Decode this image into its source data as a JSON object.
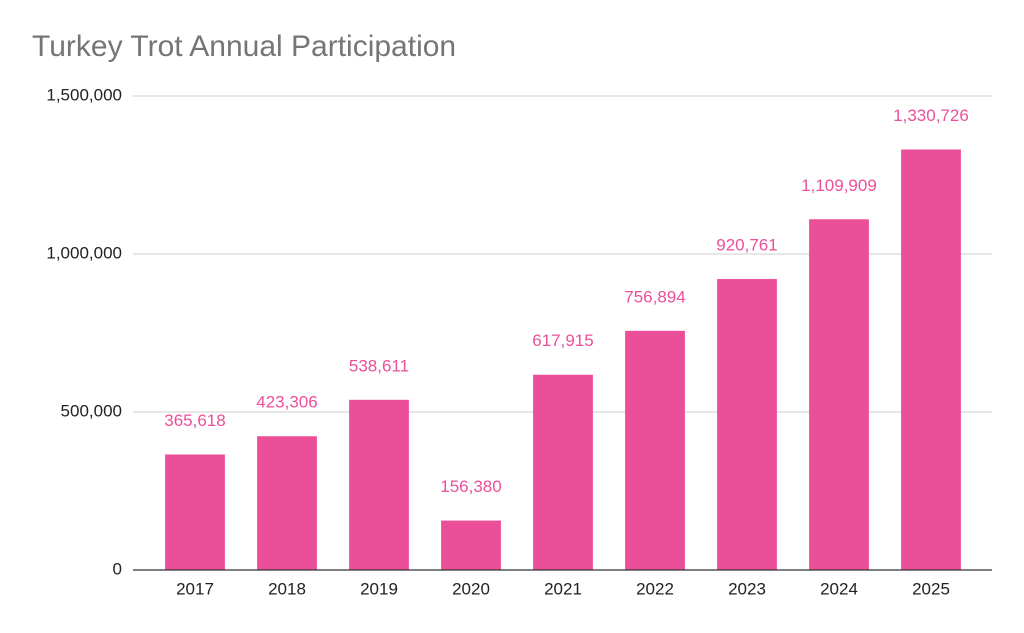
{
  "chart_data": {
    "type": "bar",
    "title": "Turkey Trot Annual Participation",
    "categories": [
      "2017",
      "2018",
      "2019",
      "2020",
      "2021",
      "2022",
      "2023",
      "2024",
      "2025"
    ],
    "values": [
      365618,
      423306,
      538611,
      156380,
      617915,
      756894,
      920761,
      1109909,
      1330726
    ],
    "value_labels": [
      "365,618",
      "423,306",
      "538,611",
      "156,380",
      "617,915",
      "756,894",
      "920,761",
      "1,109,909",
      "1,330,726"
    ],
    "color": "#ec4f99",
    "ylim": [
      0,
      1500000
    ],
    "yticks": [
      0,
      {
        "value": 500000,
        "label": "500,000"
      },
      {
        "value": 1000000,
        "label": "1,000,000"
      },
      {
        "value": 1500000,
        "label": "1,500,000"
      }
    ],
    "grid": true
  }
}
